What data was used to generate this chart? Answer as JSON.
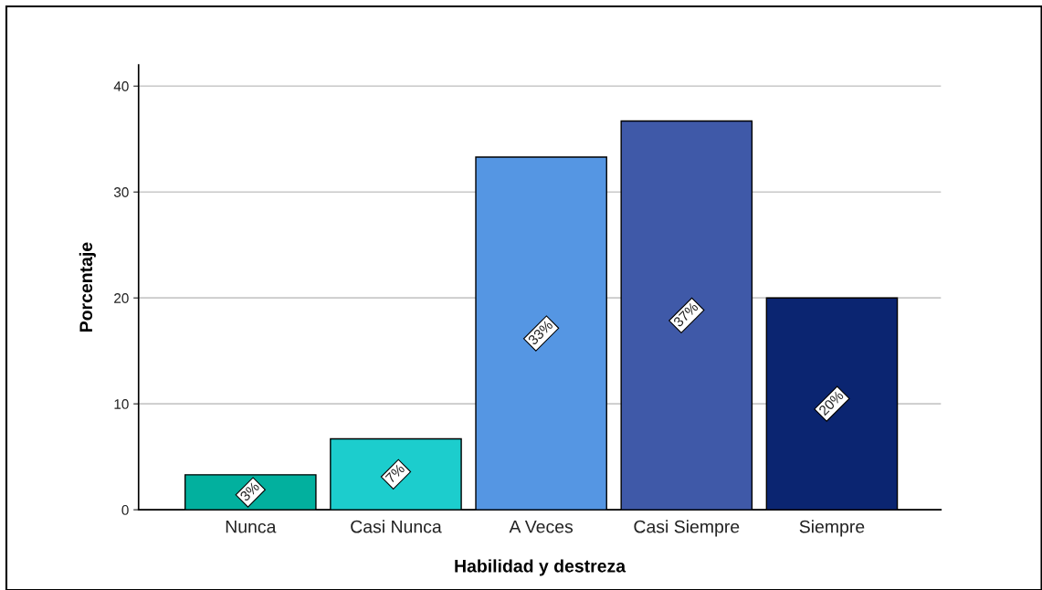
{
  "chart_data": {
    "type": "bar",
    "xlabel": "Habilidad y destreza",
    "ylabel": "Porcentaje",
    "categories": [
      "Nunca",
      "Casi Nunca",
      "A Veces",
      "Casi Siempre",
      "Siempre"
    ],
    "values": [
      3.3,
      6.7,
      33.3,
      36.7,
      20.0
    ],
    "colors": [
      "#02b09e",
      "#1ccdcd",
      "#5596e3",
      "#3f59a8",
      "#0b2571"
    ],
    "value_labels": [
      "3%",
      "7%",
      "33%",
      "37%",
      "20%"
    ],
    "ylim": [
      0,
      42
    ],
    "yticks": [
      0,
      10,
      20,
      30,
      40
    ],
    "grid": "y"
  }
}
